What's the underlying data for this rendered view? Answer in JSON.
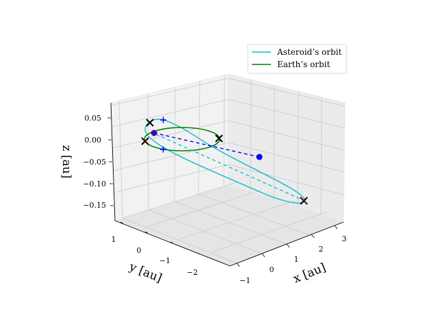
{
  "chart_data": {
    "type": "3d-line",
    "title": "",
    "xlabel": "$x$ [au]",
    "ylabel": "$y$ [au]",
    "zlabel": "$z$ [au]",
    "xlabel_text": "x [au]",
    "ylabel_text": "y [au]",
    "zlabel_text": "z [au]",
    "xlim": [
      -1.2,
      3.3
    ],
    "ylim": [
      -2.8,
      1.3
    ],
    "zlim": [
      -0.17,
      0.07
    ],
    "xticks": [
      "−1",
      "0",
      "1",
      "2",
      "3"
    ],
    "yticks": [
      "1",
      "0",
      "−1",
      "−2"
    ],
    "zticks": [
      "0.05",
      "0.00",
      "−0.05",
      "−0.10",
      "−0.15"
    ],
    "grid": true,
    "legend": {
      "position": "top-right",
      "entries": [
        {
          "label": "Asteroid’s orbit",
          "color": "#17becf"
        },
        {
          "label": "Earth’s orbit",
          "color": "#008000"
        }
      ]
    },
    "series": [
      {
        "name": "Asteroid’s orbit",
        "color": "#17becf",
        "kind": "ellipse",
        "semi_major_axis": 1.9,
        "eccentricity": 0.47,
        "perihelion_longitude_deg": 160,
        "z_amplitude": 0.16
      },
      {
        "name": "Earth’s orbit",
        "color": "#008000",
        "kind": "circle",
        "radius": 1.0,
        "z": 0.0
      }
    ],
    "markers": {
      "sun": {
        "x": 0,
        "y": 0,
        "z": 0,
        "color": "#7f007f"
      },
      "asteroid_position": {
        "x": 2.0,
        "y": -0.6,
        "z": -0.02,
        "color": "#0000ff"
      },
      "apsides": [
        {
          "x": -0.95,
          "y": 0.4,
          "z": 0.05
        },
        {
          "x": 3.1,
          "y": -0.4,
          "z": -0.14
        }
      ],
      "nodes": [
        {
          "x": -0.8,
          "y": 0.9,
          "z": 0.0
        },
        {
          "x": 0.9,
          "y": -0.5,
          "z": 0.0
        }
      ],
      "earth_points": [
        {
          "x": -0.9,
          "y": 0.6,
          "z": 0.0
        }
      ],
      "plus_markers": [
        {
          "x": -0.6,
          "y": 0.2,
          "z": 0.05
        },
        {
          "x": -0.55,
          "y": -0.4,
          "z": -0.02
        }
      ]
    }
  }
}
